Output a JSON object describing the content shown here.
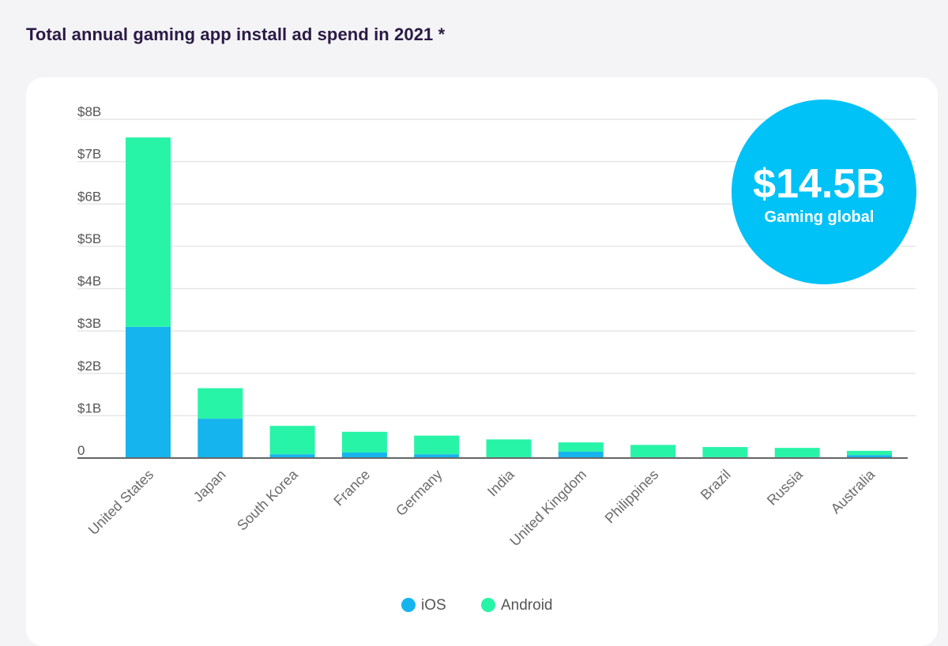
{
  "title": "Total annual gaming app install ad spend in 2021 *",
  "badge": {
    "value": "$14.5B",
    "label": "Gaming global",
    "color": "#00c2f7"
  },
  "colors": {
    "ios": "#16b4ee",
    "android": "#28f4a8",
    "grid": "#e6e6e6",
    "axis": "#666666"
  },
  "chart_data": {
    "type": "bar",
    "stacked": true,
    "categories": [
      "United States",
      "Japan",
      "South Korea",
      "France",
      "Germany",
      "India",
      "United Kingdom",
      "Philippines",
      "Brazil",
      "Russia",
      "Australia"
    ],
    "series": [
      {
        "name": "iOS",
        "values": [
          3.1,
          0.93,
          0.09,
          0.13,
          0.09,
          0.02,
          0.15,
          0.02,
          0.02,
          0.02,
          0.07
        ]
      },
      {
        "name": "Android",
        "values": [
          4.47,
          0.72,
          0.67,
          0.49,
          0.44,
          0.42,
          0.22,
          0.29,
          0.24,
          0.22,
          0.1
        ]
      }
    ],
    "yticks": [
      "0",
      "$1B",
      "$2B",
      "$3B",
      "$4B",
      "$5B",
      "$6B",
      "$7B",
      "$8B"
    ],
    "ylim": [
      0,
      8
    ],
    "xlabel": "",
    "ylabel": "",
    "grid": true,
    "legend_position": "bottom-center"
  }
}
